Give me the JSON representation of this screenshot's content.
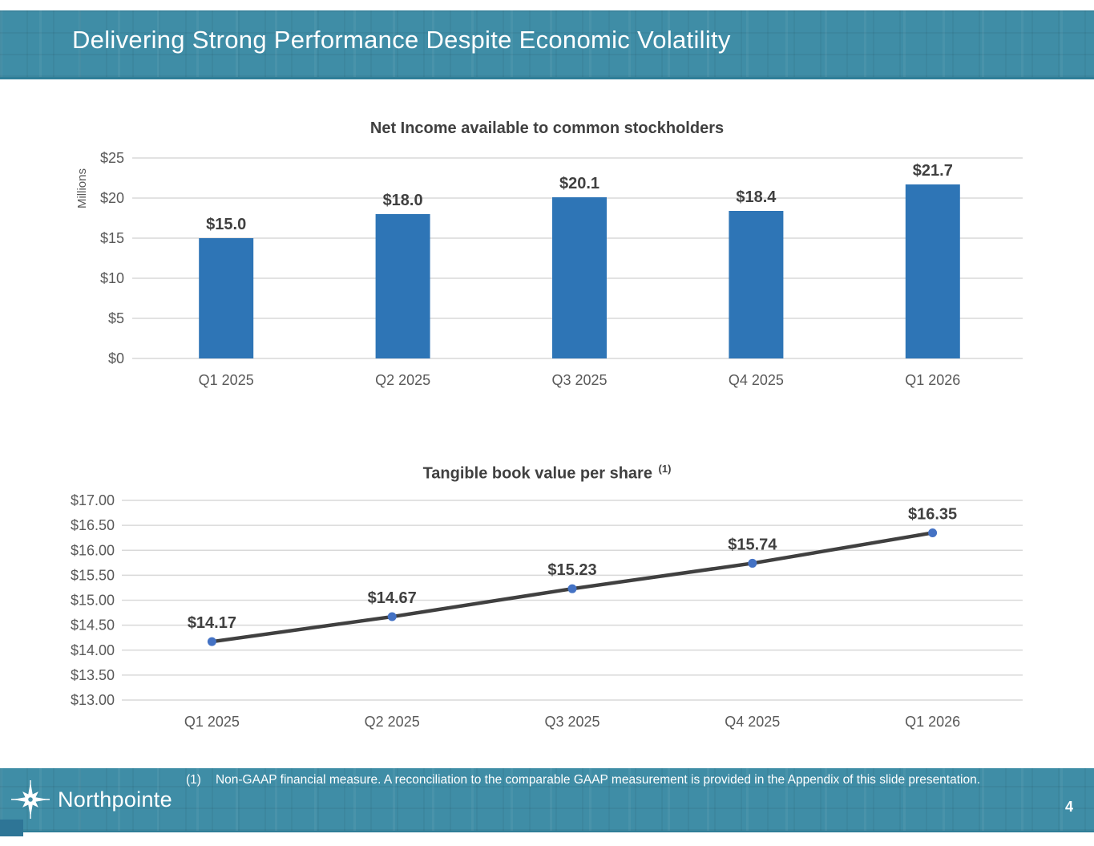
{
  "slide": {
    "title": "Delivering Strong Performance Despite Economic Volatility",
    "page_number": "4",
    "footnote_marker": "(1)",
    "footnote_text": "Non-GAAP financial measure. A reconciliation to the comparable GAAP measurement is provided in the Appendix of this slide presentation.",
    "logo_text": "Northpointe"
  },
  "colors": {
    "header_teal": "#3F8DA6",
    "header_edge": "#2F7E98",
    "bar_blue": "#2E75B6",
    "marker_blue": "#4472C4",
    "line_gray": "#404040",
    "grid_gray": "#D9D9D9",
    "tick_gray": "#595959",
    "label_gray": "#404040"
  },
  "chart_data": [
    {
      "type": "bar",
      "title": "Net Income available to common stockholders",
      "xlabel": "",
      "ylabel": "Millions",
      "categories": [
        "Q1 2025",
        "Q2 2025",
        "Q3 2025",
        "Q4 2025",
        "Q1 2026"
      ],
      "values": [
        15.0,
        18.0,
        20.1,
        18.4,
        21.7
      ],
      "labels": [
        "$15.0",
        "$18.0",
        "$20.1",
        "$18.4",
        "$21.7"
      ],
      "ylim": [
        0,
        25
      ],
      "ytick_step": 5,
      "ytick_labels": [
        "$0",
        "$5",
        "$10",
        "$15",
        "$20",
        "$25"
      ],
      "grid": true,
      "legend": "none",
      "bar_color": "#2E75B6"
    },
    {
      "type": "line",
      "title": "Tangible book value per share",
      "title_superscript": "(1)",
      "xlabel": "",
      "ylabel": "",
      "categories": [
        "Q1 2025",
        "Q2 2025",
        "Q3 2025",
        "Q4 2025",
        "Q1 2026"
      ],
      "values": [
        14.17,
        14.67,
        15.23,
        15.74,
        16.35
      ],
      "labels": [
        "$14.17",
        "$14.67",
        "$15.23",
        "$15.74",
        "$16.35"
      ],
      "ylim": [
        13.0,
        17.0
      ],
      "ytick_step": 0.5,
      "ytick_labels": [
        "$13.00",
        "$13.50",
        "$14.00",
        "$14.50",
        "$15.00",
        "$15.50",
        "$16.00",
        "$16.50",
        "$17.00"
      ],
      "grid": true,
      "legend": "none",
      "line_color": "#404040",
      "marker_color": "#4472C4"
    }
  ]
}
